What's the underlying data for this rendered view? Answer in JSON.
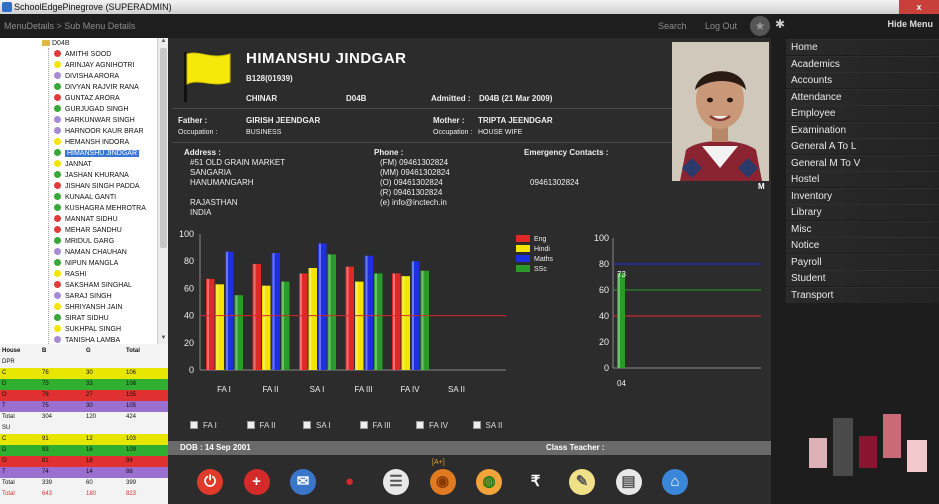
{
  "window": {
    "title": "SchoolEdgePinegrove (SUPERADMIN)",
    "close_glyph": "x"
  },
  "nav": {
    "breadcrumb": "MenuDetails > Sub Menu Details",
    "search": "Search",
    "logout": "Log Out",
    "star_icon": "star-icon"
  },
  "tree": {
    "folder": "D04B",
    "students": [
      {
        "name": "AMITHI  SOOD",
        "color": "#e23b3b"
      },
      {
        "name": "ARINJAY  AGNIHOTRI",
        "color": "#f2e600"
      },
      {
        "name": "DIVISHA  ARORA",
        "color": "#a58ad6"
      },
      {
        "name": "DIVYAN RAJVIR  RANA",
        "color": "#38a838"
      },
      {
        "name": "GUNTAZ  ARORA",
        "color": "#e23b3b"
      },
      {
        "name": "GURJUGAD  SINGH",
        "color": "#38a838"
      },
      {
        "name": "HARKUNWAR  SINGH",
        "color": "#a58ad6"
      },
      {
        "name": "HARNOOR KAUR  BRAR",
        "color": "#a58ad6"
      },
      {
        "name": "HEMANSH  INDORA",
        "color": "#f2e600"
      },
      {
        "name": "HIMANSHU  JINDGAR",
        "color": "#38a838",
        "selected": true
      },
      {
        "name": "JANNAT",
        "color": "#f2e600"
      },
      {
        "name": "JASHAN  KHURANA",
        "color": "#38a838"
      },
      {
        "name": "JISHAN SINGH  PADDA",
        "color": "#e23b3b"
      },
      {
        "name": "KUNAAL  GANTI",
        "color": "#38a838"
      },
      {
        "name": "KUSHAGRA  MEHROTRA",
        "color": "#38a838"
      },
      {
        "name": "MANNAT  SIDHU",
        "color": "#e23b3b"
      },
      {
        "name": "MEHAR  SANDHU",
        "color": "#e23b3b"
      },
      {
        "name": "MRIDUL  GARG",
        "color": "#38a838"
      },
      {
        "name": "NAMAN  CHAUHAN",
        "color": "#a58ad6"
      },
      {
        "name": "NIPUN  MANGLA",
        "color": "#38a838"
      },
      {
        "name": "RASHI",
        "color": "#f2e600"
      },
      {
        "name": "SAKSHAM  SINGHAL",
        "color": "#e23b3b"
      },
      {
        "name": "SARAJ  SINGH",
        "color": "#a58ad6"
      },
      {
        "name": "SHRIYANSH  JAIN",
        "color": "#f2e600"
      },
      {
        "name": "SIRAT  SIDHU",
        "color": "#38a838"
      },
      {
        "name": "SUKHPAL  SINGH",
        "color": "#f2e600"
      },
      {
        "name": "TANISHA  LAMBA",
        "color": "#a58ad6"
      }
    ]
  },
  "house_table": {
    "headers": [
      "House",
      "B",
      "G",
      "Total"
    ],
    "rows": [
      {
        "cells": [
          "DPR",
          "",
          "",
          ""
        ],
        "bg": "#f3f3f3"
      },
      {
        "cells": [
          "C",
          "76",
          "30",
          "106"
        ],
        "bg": "#e6e600"
      },
      {
        "cells": [
          "D",
          "75",
          "33",
          "108"
        ],
        "bg": "#2fae2f"
      },
      {
        "cells": [
          "O",
          "78",
          "27",
          "105"
        ],
        "bg": "#e03030"
      },
      {
        "cells": [
          "T",
          "75",
          "30",
          "105"
        ],
        "bg": "#9a6fd0"
      },
      {
        "cells": [
          "Total",
          "304",
          "120",
          "424"
        ],
        "bg": "#f3f3f3"
      },
      {
        "cells": [
          "SU",
          "",
          "",
          ""
        ],
        "bg": "#f3f3f3"
      },
      {
        "cells": [
          "C",
          "91",
          "12",
          "103"
        ],
        "bg": "#e6e600"
      },
      {
        "cells": [
          "D",
          "93",
          "16",
          "109"
        ],
        "bg": "#2fae2f"
      },
      {
        "cells": [
          "O",
          "81",
          "18",
          "99"
        ],
        "bg": "#e03030"
      },
      {
        "cells": [
          "T",
          "74",
          "14",
          "88"
        ],
        "bg": "#9a6fd0"
      },
      {
        "cells": [
          "Total",
          "339",
          "60",
          "399"
        ],
        "bg": "#f3f3f3"
      },
      {
        "cells": [
          "Total",
          "643",
          "180",
          "823"
        ],
        "bg": "#f3f3f3",
        "text_color": "#e03030"
      }
    ]
  },
  "student": {
    "name": "HIMANSHU  JINDGAR",
    "code": "B128(01939)",
    "house": "CHINAR",
    "section": "D04B",
    "admitted_label": "Admitted :",
    "admitted_value": "D04B  (21 Mar 2009)",
    "father_label": "Father :",
    "father": "GIRISH  JEENDGAR",
    "mother_label": "Mother :",
    "mother": "TRIPTA  JEENDGAR",
    "occupation_label": "Occupation :",
    "father_occupation": "BUSINESS",
    "mother_occupation": "HOUSE WIFE",
    "address_label": "Address :",
    "address_lines": [
      "#51 OLD GRAIN MARKET",
      "SANGARIA",
      "HANUMANGARH",
      "",
      "RAJASTHAN",
      "INDIA"
    ],
    "phone_label": "Phone :",
    "phone_lines": [
      "(FM)   09461302824",
      "(MM)   09461302824",
      "(O)   09461302824",
      "(R)   09461302824",
      "(e)   info@inctech.in"
    ],
    "emergency_label": "Emergency Contacts :",
    "emergency_value": "09461302824",
    "gender": "M",
    "dob": "DOB : 14 Sep 2001",
    "class_teacher": "Class Teacher :"
  },
  "chart_data": [
    {
      "type": "bar",
      "categories": [
        "FA I",
        "FA II",
        "SA I",
        "FA III",
        "FA IV",
        "SA II"
      ],
      "series": [
        {
          "name": "Eng",
          "color": "#e02828",
          "values": [
            67,
            78,
            71,
            76,
            71,
            null
          ]
        },
        {
          "name": "Hindi",
          "color": "#f5e400",
          "values": [
            63,
            62,
            75,
            65,
            69,
            null
          ]
        },
        {
          "name": "Maths",
          "color": "#1e2fe0",
          "values": [
            87,
            86,
            93,
            84,
            80,
            null
          ]
        },
        {
          "name": "SSc",
          "color": "#2a9a2a",
          "values": [
            55,
            65,
            85,
            71,
            73,
            null
          ]
        }
      ],
      "reference_line": 40,
      "ylim": [
        0,
        100
      ],
      "yticks": [
        0,
        20,
        40,
        60,
        80,
        100
      ],
      "grid": false,
      "legend": "top-right"
    },
    {
      "type": "bar",
      "categories": [
        "04"
      ],
      "series": [
        {
          "name": "",
          "color": "#2a9a2a",
          "values": [
            73
          ]
        }
      ],
      "data_labels": [
        "73"
      ],
      "reference_lines": [
        {
          "value": 80,
          "color": "#1e2fe0"
        },
        {
          "value": 60,
          "color": "#2a9a2a"
        },
        {
          "value": 40,
          "color": "#e02828"
        }
      ],
      "ylim": [
        0,
        100
      ],
      "yticks": [
        0,
        20,
        40,
        60,
        80,
        100
      ],
      "grid": false
    }
  ],
  "filters": [
    "FA I",
    "FA II",
    "SA I",
    "FA III",
    "FA IV",
    "SA II"
  ],
  "toolbar": {
    "grade_badge": "[A+]",
    "tools": [
      {
        "name": "power-icon",
        "glyph": "⏻",
        "color": "#e03a2a",
        "fg": "#fff"
      },
      {
        "name": "add-icon",
        "glyph": "+",
        "color": "#d42a2a",
        "fg": "#fff"
      },
      {
        "name": "mail-icon",
        "glyph": "✉",
        "color": "#3a77c9",
        "fg": "#fff"
      },
      {
        "name": "strawberry-icon",
        "glyph": "●",
        "color": "#2c2c2c",
        "fg": "#d42a2a"
      },
      {
        "name": "notepad-icon",
        "glyph": "☰",
        "color": "#e8e8e8",
        "fg": "#555"
      },
      {
        "name": "basketball-icon",
        "glyph": "◉",
        "color": "#e07a20",
        "fg": "#8a3a00"
      },
      {
        "name": "india-flag-icon",
        "glyph": "◍",
        "color": "#f2a33a",
        "fg": "#1a7a1a"
      },
      {
        "name": "rupee-icon",
        "glyph": "₹",
        "color": "#2c2c2c",
        "fg": "#fff"
      },
      {
        "name": "pencil-note-icon",
        "glyph": "✎",
        "color": "#f0e088",
        "fg": "#555"
      },
      {
        "name": "clipboard-icon",
        "glyph": "▤",
        "color": "#e8e8e8",
        "fg": "#555"
      },
      {
        "name": "home-icon",
        "glyph": "⌂",
        "color": "#3a86d9",
        "fg": "#fff"
      }
    ]
  },
  "menu": {
    "hide": "Hide Menu",
    "items": [
      "Home",
      "Academics",
      "Accounts",
      "Attendance",
      "Employee",
      "Examination",
      "General A To L",
      "General M To V",
      "Hostel",
      "Inventory",
      "Library",
      "Misc",
      "Notice",
      "Payroll",
      "Student",
      "Transport"
    ]
  }
}
